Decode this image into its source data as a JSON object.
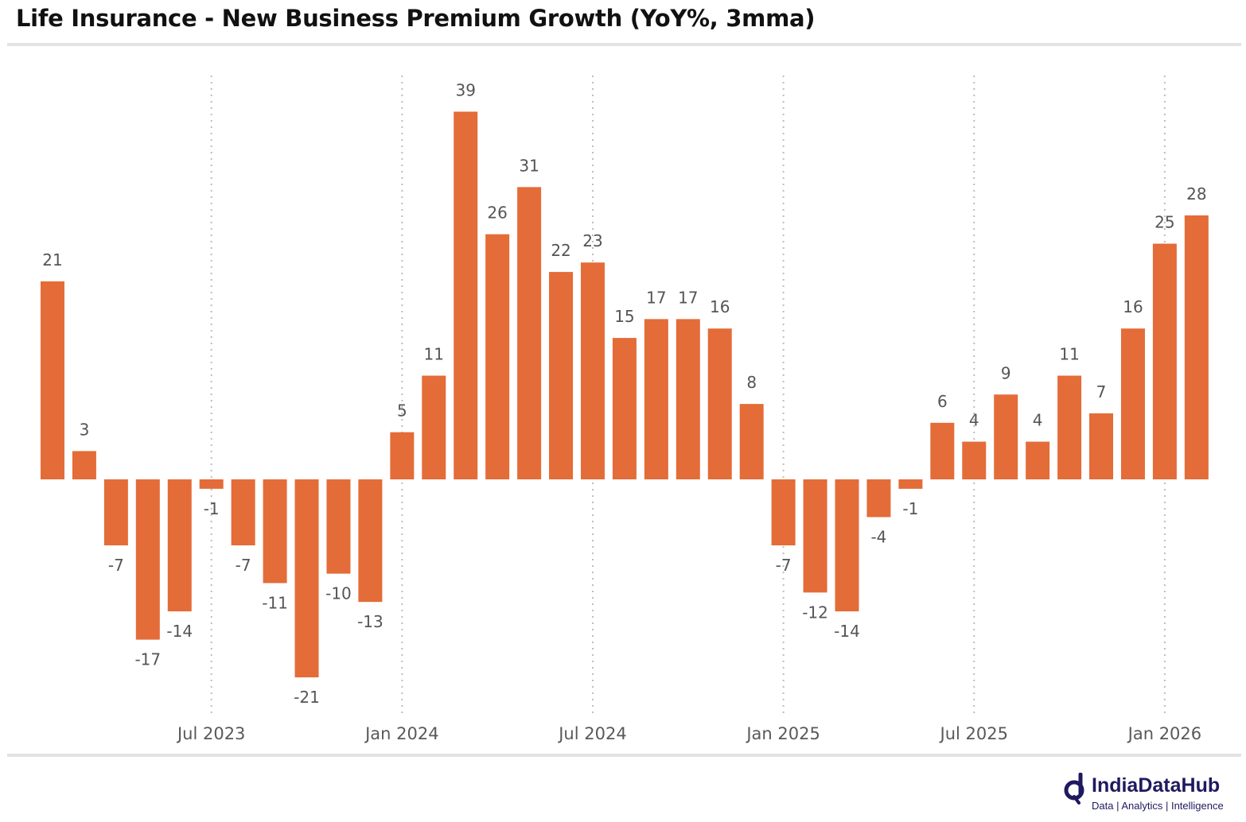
{
  "chart_data": {
    "type": "bar",
    "title": "Life Insurance - New Business Premium Growth (YoY%, 3mma)",
    "xlabel": "",
    "ylabel": "",
    "categories": [
      "Feb 2023",
      "Mar 2023",
      "Apr 2023",
      "May 2023",
      "Jun 2023",
      "Jul 2023",
      "Aug 2023",
      "Sep 2023",
      "Oct 2023",
      "Nov 2023",
      "Dec 2023",
      "Jan 2024",
      "Feb 2024",
      "Mar 2024",
      "Apr 2024",
      "May 2024",
      "Jun 2024",
      "Jul 2024",
      "Aug 2024",
      "Sep 2024",
      "Oct 2024",
      "Nov 2024",
      "Dec 2024",
      "Jan 2025",
      "Feb 2025",
      "Mar 2025",
      "Apr 2025",
      "May 2025",
      "Jun 2025",
      "Jul 2025",
      "Aug 2025",
      "Sep 2025",
      "Oct 2025",
      "Nov 2025",
      "Dec 2025",
      "Jan 2026",
      "Feb 2026"
    ],
    "values": [
      21,
      3,
      -7,
      -17,
      -14,
      -1,
      -7,
      -11,
      -21,
      -10,
      -13,
      5,
      11,
      39,
      26,
      31,
      22,
      23,
      15,
      17,
      17,
      16,
      8,
      -7,
      -12,
      -14,
      -4,
      -1,
      6,
      4,
      9,
      4,
      11,
      7,
      16,
      25,
      28
    ],
    "x_ticks": [
      {
        "label": "Jul 2023",
        "category": "Jul 2023"
      },
      {
        "label": "Jan 2024",
        "category": "Jan 2024"
      },
      {
        "label": "Jul 2024",
        "category": "Jul 2024"
      },
      {
        "label": "Jan 2025",
        "category": "Jan 2025"
      },
      {
        "label": "Jul 2025",
        "category": "Jul 2025"
      },
      {
        "label": "Jan 2026",
        "category": "Jan 2026"
      }
    ],
    "ylim": [
      -25,
      42
    ],
    "grid": "vertical dotted at x ticks",
    "legend": "none",
    "bar_color": "#E46C38"
  },
  "branding": {
    "name": "IndiaDataHub",
    "tagline": "Data | Analytics | Intelligence",
    "color": "#1f1a5e"
  }
}
